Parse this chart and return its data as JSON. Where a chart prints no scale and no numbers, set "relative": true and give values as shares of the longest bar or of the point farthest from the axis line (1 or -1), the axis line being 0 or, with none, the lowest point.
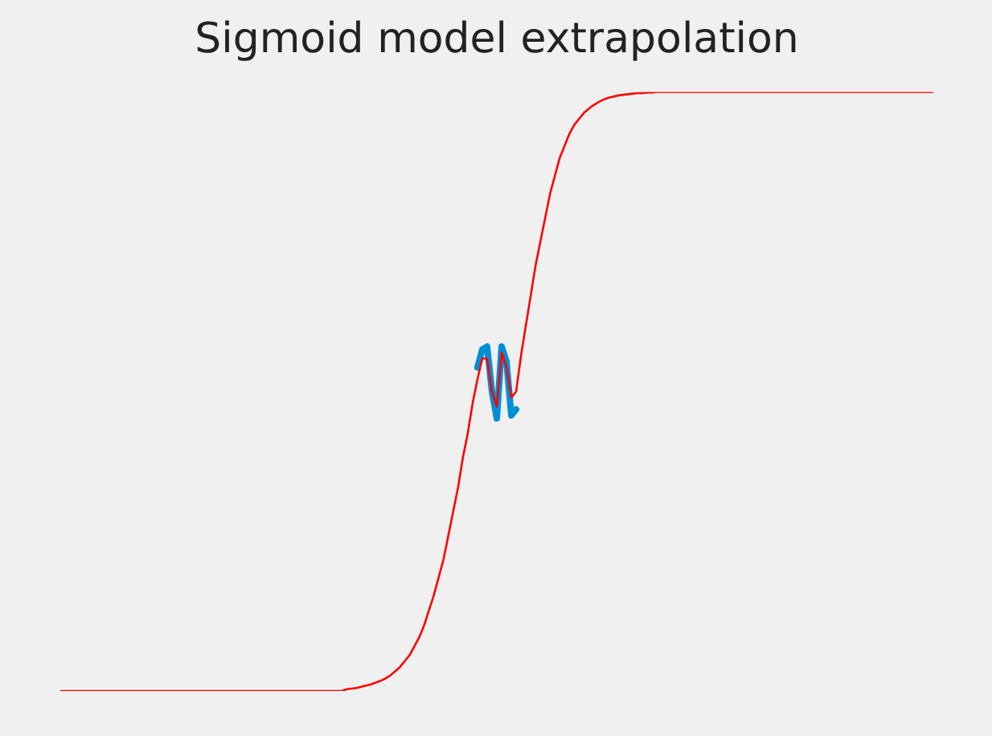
{
  "chart_data": {
    "type": "line",
    "title": "Sigmoid model extrapolation",
    "relative": true,
    "categories": [
      null,
      null,
      null,
      null,
      null,
      null,
      null,
      null,
      null,
      null,
      null,
      null,
      null,
      null,
      null,
      null,
      null,
      null,
      null,
      null,
      null,
      null,
      null,
      null,
      null,
      null,
      null,
      null,
      null,
      null,
      null,
      null,
      null,
      null,
      null,
      null,
      null,
      null,
      null,
      null,
      null,
      null,
      null,
      null,
      null,
      null,
      null,
      null,
      null,
      null,
      null,
      null,
      null,
      null,
      null,
      null,
      null,
      null,
      null,
      null,
      null,
      null,
      null,
      null,
      null,
      null,
      null,
      null,
      null,
      null,
      null,
      null,
      null,
      null,
      null,
      null,
      null,
      null,
      null,
      null,
      null,
      null,
      null,
      null,
      null,
      null,
      null,
      null,
      null,
      null,
      null,
      null,
      null,
      null,
      null,
      null,
      null,
      null,
      null,
      null,
      null,
      null,
      null,
      null,
      null,
      null,
      null,
      null,
      null,
      null,
      null,
      null,
      null,
      null,
      null,
      null,
      null,
      null,
      null,
      null,
      null,
      null,
      null,
      null,
      null,
      null,
      null,
      null,
      null,
      null,
      null,
      null,
      null,
      null,
      null,
      null,
      null,
      null,
      null,
      null,
      null,
      null,
      null,
      null,
      null,
      null,
      null,
      null,
      null,
      null,
      null,
      null,
      null,
      null,
      null,
      null,
      null,
      null,
      null,
      null,
      null,
      null,
      null,
      null,
      null,
      null,
      null,
      null,
      null,
      null,
      null,
      null,
      null,
      null,
      null,
      null,
      null,
      null,
      null,
      null,
      null
    ],
    "series": [
      {
        "color": "#ff0000",
        "values": [
          0,
          0,
          0,
          0,
          0,
          0,
          0,
          0,
          0,
          0,
          0,
          0,
          0,
          0,
          0,
          0,
          0,
          0,
          0,
          0,
          0,
          0,
          0,
          0,
          0,
          0,
          0,
          0,
          0,
          0,
          0,
          0,
          0,
          0,
          0,
          0,
          0,
          0,
          0,
          0,
          0,
          0,
          0,
          0,
          0,
          0,
          0,
          0,
          0,
          0,
          0,
          0,
          0,
          0,
          0,
          0,
          0,
          0,
          0,
          0.003,
          0.004,
          0.005,
          0.007,
          0.009,
          0.011,
          0.014,
          0.017,
          0.021,
          0.026,
          0.033,
          0.04,
          0.05,
          0.06,
          0.075,
          0.09,
          0.11,
          0.135,
          0.16,
          0.19,
          0.22,
          0.26,
          0.3,
          0.34,
          0.39,
          0.43,
          0.48,
          0.52,
          0.555,
          0.555,
          0.5,
          0.475,
          0.565,
          0.54,
          0.49,
          0.5,
          0.56,
          0.61,
          0.66,
          0.71,
          0.75,
          0.79,
          0.83,
          0.86,
          0.89,
          0.91,
          0.93,
          0.945,
          0.955,
          0.965,
          0.972,
          0.978,
          0.983,
          0.987,
          0.99,
          0.992,
          0.994,
          0.995,
          0.996,
          0.997,
          0.998,
          0.998,
          0.999,
          0.999,
          1,
          1,
          1,
          1,
          1,
          1,
          1,
          1,
          1,
          1,
          1,
          1,
          1,
          1,
          1,
          1,
          1,
          1,
          1,
          1,
          1,
          1,
          1,
          1,
          1,
          1,
          1,
          1,
          1,
          1,
          1,
          1,
          1,
          1,
          1,
          1,
          1,
          1,
          1,
          1,
          1,
          1,
          1,
          1,
          1,
          1,
          1,
          1,
          1,
          1,
          1,
          1,
          1,
          1,
          1,
          1,
          1,
          1
        ]
      },
      {
        "color": "#008fd5",
        "values": [
          null,
          null,
          null,
          null,
          null,
          null,
          null,
          null,
          null,
          null,
          null,
          null,
          null,
          null,
          null,
          null,
          null,
          null,
          null,
          null,
          null,
          null,
          null,
          null,
          null,
          null,
          null,
          null,
          null,
          null,
          null,
          null,
          null,
          null,
          null,
          null,
          null,
          null,
          null,
          null,
          null,
          null,
          null,
          null,
          null,
          null,
          null,
          null,
          null,
          null,
          null,
          null,
          null,
          null,
          null,
          null,
          null,
          null,
          null,
          null,
          null,
          null,
          null,
          null,
          null,
          null,
          null,
          null,
          null,
          null,
          null,
          null,
          null,
          null,
          null,
          null,
          null,
          null,
          null,
          null,
          null,
          null,
          null,
          null,
          null,
          null,
          0.54,
          0.57,
          0.575,
          0.5,
          0.455,
          0.575,
          0.55,
          0.46,
          0.47,
          null,
          null,
          null,
          null,
          null,
          null,
          null,
          null,
          null,
          null,
          null,
          null,
          null,
          null,
          null,
          null,
          null,
          null,
          null,
          null,
          null,
          null,
          null,
          null,
          null,
          null,
          null,
          null,
          null,
          null,
          null,
          null,
          null,
          null,
          null,
          null,
          null,
          null,
          null,
          null,
          null,
          null,
          null,
          null,
          null,
          null,
          null,
          null,
          null,
          null,
          null,
          null,
          null,
          null,
          null,
          null,
          null,
          null,
          null,
          null,
          null,
          null,
          null,
          null,
          null,
          null,
          null,
          null,
          null,
          null,
          null,
          null,
          null,
          null,
          null,
          null,
          null,
          null,
          null,
          null,
          null,
          null,
          null,
          null,
          null,
          null
        ]
      }
    ]
  }
}
